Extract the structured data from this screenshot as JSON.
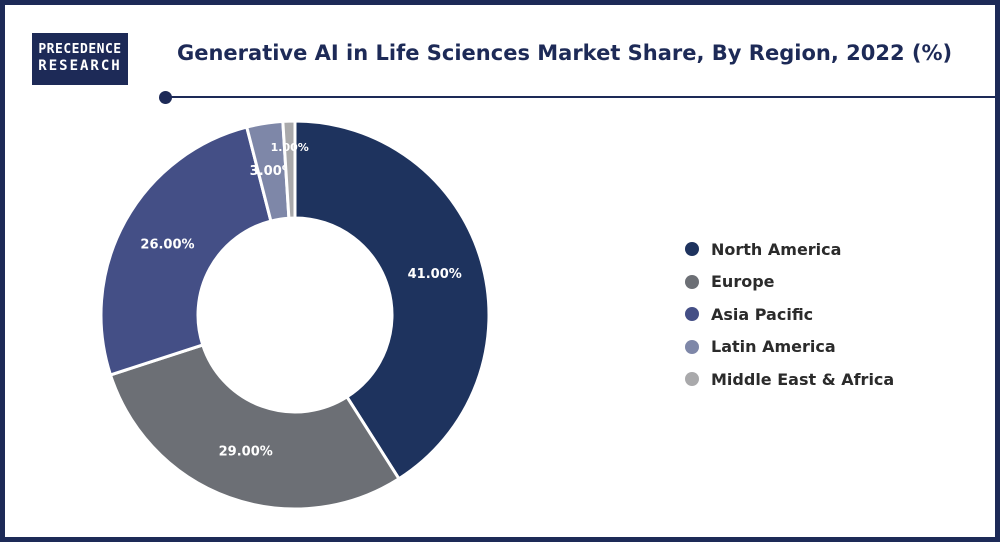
{
  "logo": {
    "line1": "PRECEDENCE",
    "line2": "RESEARCH"
  },
  "chart_data": {
    "type": "pie",
    "title": "Generative AI in Life Sciences Market Share, By Region, 2022 (%)",
    "categories": [
      "North America",
      "Europe",
      "Asia Pacific",
      "Latin America",
      "Middle East & Africa"
    ],
    "values": [
      41.0,
      29.0,
      26.0,
      3.0,
      1.0
    ],
    "data_labels": [
      "41.00%",
      "29.00%",
      "26.00%",
      "3.00%",
      "1.00%"
    ],
    "colors": [
      "#1e335e",
      "#6c6f75",
      "#444f86",
      "#7e87a8",
      "#a9a9ab"
    ],
    "donut": true,
    "legend_position": "right"
  }
}
